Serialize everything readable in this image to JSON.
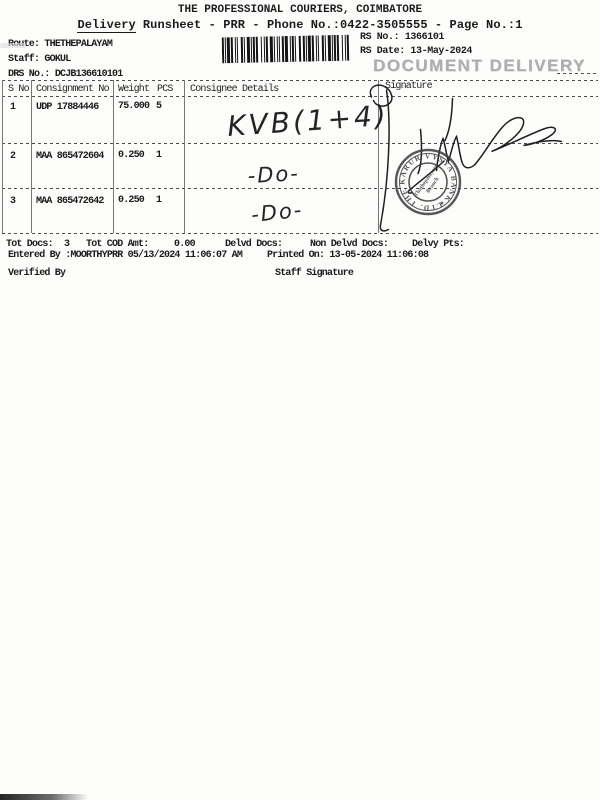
{
  "document": {
    "title": "THE PROFESSIONAL COURIERS, COIMBATORE",
    "subtitle_word": "Delivery",
    "subtitle_rest": "Runsheet - PRR - Phone No.:0422-3505555 - Page No.:1"
  },
  "meta": {
    "route_label": "Route:",
    "route": "THETHEPALAYAM",
    "staff_label": "Staff:",
    "staff": "GOKUL",
    "drs_label": "DRS No.:",
    "drs": "DCJB136610101",
    "rs_no_label": "RS No.:",
    "rs_no": "1366101",
    "rs_date_label": "RS Date:",
    "rs_date": "13-May-2024",
    "delivery_type_stamp": "DOCUMENT DELIVERY"
  },
  "table": {
    "headers": {
      "sno": "S No",
      "consignment": "Consignment No",
      "weight": "Weight",
      "pcs": "PCS",
      "consignee": "Consignee Details",
      "signature": "Signature"
    },
    "rows": [
      {
        "sno": "1",
        "consignment": "UDP 17884446",
        "weight": "75.000",
        "pcs": "5",
        "consignee_note": "KVB(1+4)"
      },
      {
        "sno": "2",
        "consignment": "MAA 865472604",
        "weight": "0.250",
        "pcs": "1",
        "consignee_note": "-Do-"
      },
      {
        "sno": "3",
        "consignment": "MAA 865472642",
        "weight": "0.250",
        "pcs": "1",
        "consignee_note": "-Do-"
      }
    ]
  },
  "summary": {
    "tot_docs_label": "Tot Docs:",
    "tot_docs": "3",
    "tot_cod_label": "Tot COD Amt:",
    "tot_cod": "0.00",
    "delvd_docs_label": "Delvd Docs:",
    "non_delvd_docs_label": "Non Delvd Docs:",
    "delvy_pts_label": "Delvy Pts:",
    "entered_by": "Entered By :MOORTHYPRR 05/13/2024 11:06:07 AM",
    "printed_on": "Printed On: 13-05-2024 11:06:08",
    "verified_by_label": "Verified By",
    "staff_signature_label": "Staff Signature"
  },
  "stamp": {
    "ring_text": "THE KARUR VYSYA BANK LTD.",
    "center_line1": "Thathepalayam",
    "center_line2": "Branch",
    "star": "★",
    "ink_color": "#3b3b3b"
  },
  "colors": {
    "text": "#1b1b1b",
    "faded_stamp": "#aeaeae",
    "rule": "#4d4d4d",
    "handwriting_ink": "#242424"
  }
}
